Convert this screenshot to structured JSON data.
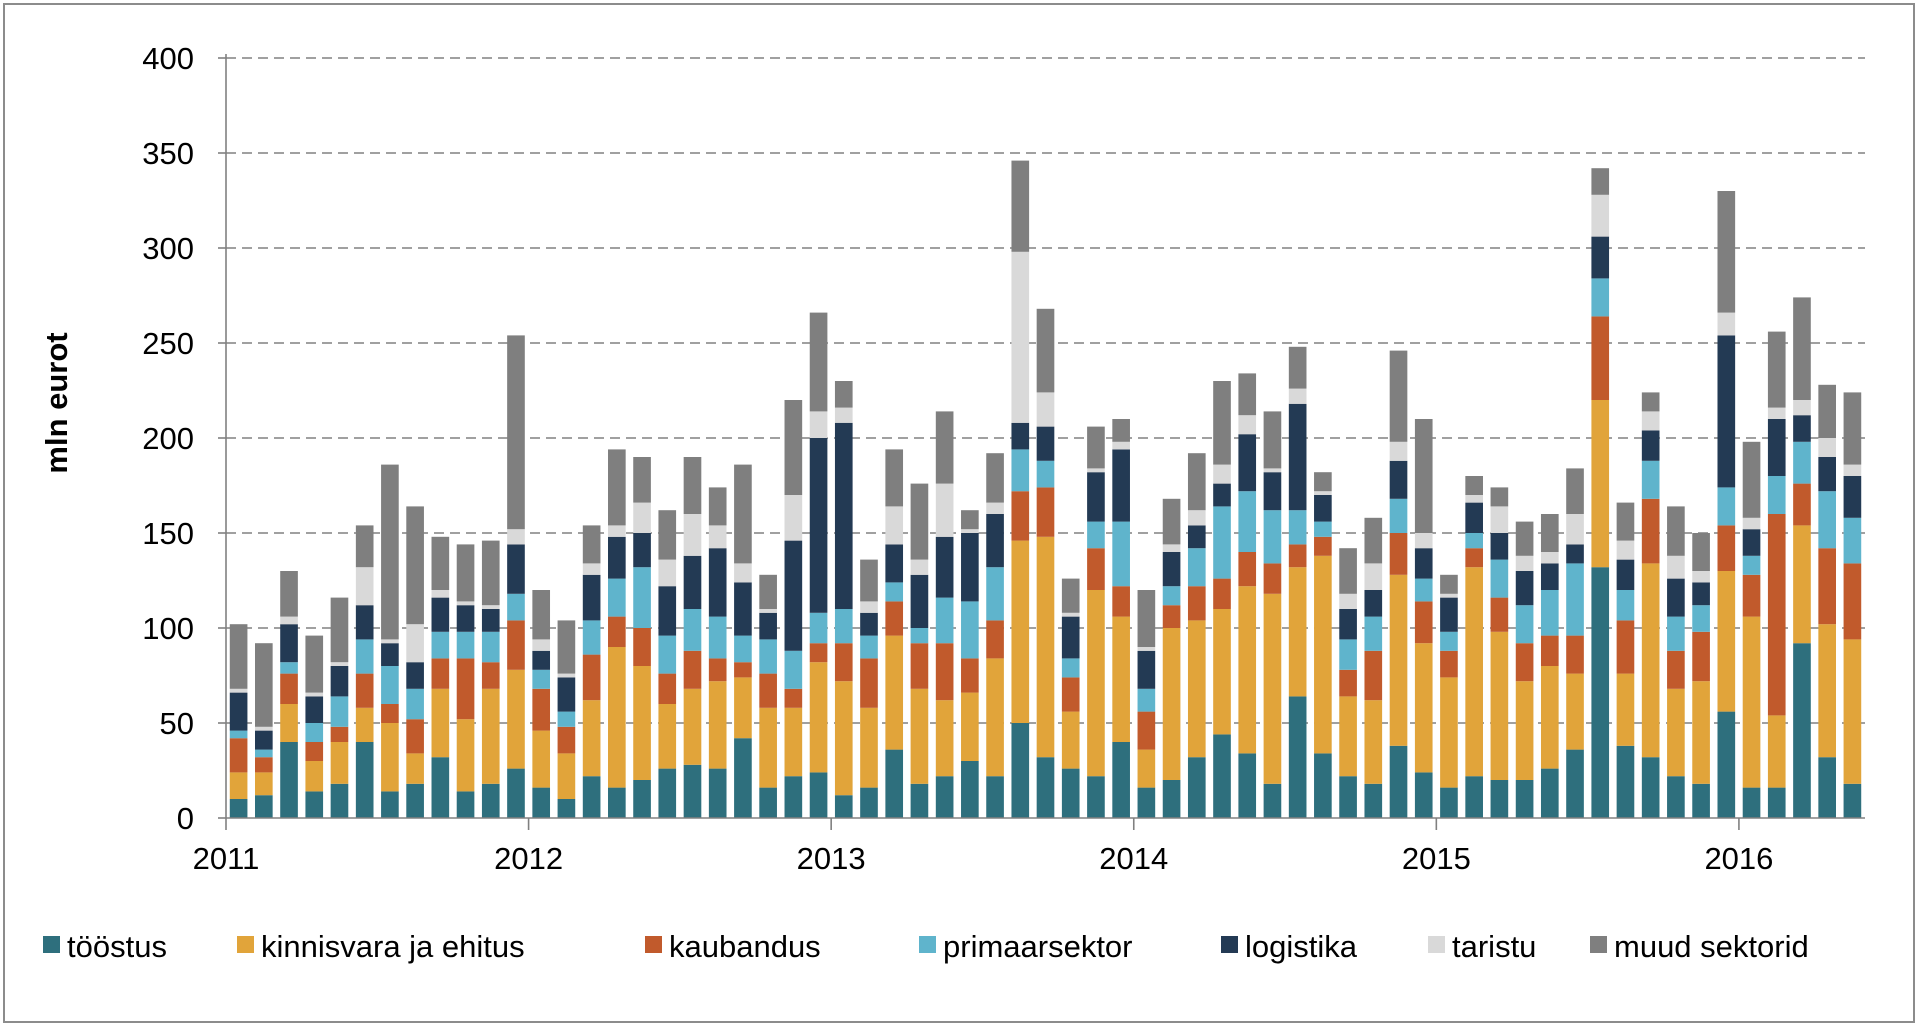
{
  "chart_data": {
    "type": "bar",
    "stacked": true,
    "title": "",
    "xlabel": "",
    "ylabel": "mln eurot",
    "ylim": [
      0,
      400
    ],
    "yticks": [
      0,
      50,
      100,
      150,
      200,
      250,
      300,
      350,
      400
    ],
    "grid": true,
    "legend_position": "bottom",
    "x_tick_labels": [
      "2011",
      "2012",
      "2013",
      "2014",
      "2015",
      "2016"
    ],
    "x_tick_months": [
      0,
      12,
      24,
      36,
      48,
      60
    ],
    "months_count": 65,
    "series": [
      {
        "name": "tööstus",
        "color": "#2e6f7d",
        "values": [
          10,
          12,
          40,
          14,
          18,
          40,
          14,
          18,
          32,
          14,
          18,
          26,
          16,
          10,
          22,
          16,
          20,
          26,
          28,
          26,
          42,
          16,
          22,
          24,
          12,
          16,
          36,
          18,
          22,
          30,
          22,
          50,
          32,
          26,
          22,
          40,
          16,
          20,
          32,
          44,
          34,
          18,
          64,
          34,
          22,
          18,
          38,
          24,
          16,
          22,
          20,
          20,
          26,
          36,
          132,
          38,
          32,
          22,
          18,
          56,
          16,
          16,
          92,
          32,
          18
        ]
      },
      {
        "name": "kinnisvara ja ehitus",
        "color": "#e1a43a",
        "values": [
          14,
          12,
          20,
          16,
          22,
          18,
          36,
          16,
          36,
          38,
          50,
          52,
          30,
          24,
          40,
          74,
          60,
          34,
          40,
          46,
          32,
          42,
          36,
          58,
          60,
          42,
          60,
          50,
          40,
          36,
          62,
          96,
          116,
          30,
          98,
          66,
          20,
          80,
          72,
          66,
          88,
          100,
          68,
          104,
          42,
          44,
          90,
          68,
          58,
          110,
          78,
          52,
          54,
          40,
          88,
          38,
          102,
          46,
          54,
          74,
          90,
          38,
          62,
          70,
          76
        ]
      },
      {
        "name": "kaubandus",
        "color": "#c15a2c",
        "values": [
          18,
          8,
          16,
          10,
          8,
          18,
          10,
          18,
          16,
          32,
          14,
          26,
          22,
          14,
          24,
          16,
          20,
          16,
          20,
          12,
          8,
          18,
          10,
          10,
          20,
          26,
          18,
          24,
          30,
          18,
          20,
          26,
          26,
          18,
          22,
          16,
          20,
          12,
          18,
          16,
          18,
          16,
          12,
          10,
          14,
          26,
          22,
          22,
          14,
          10,
          18,
          20,
          16,
          20,
          44,
          28,
          34,
          20,
          26,
          24,
          22,
          106,
          22,
          40,
          40
        ]
      },
      {
        "name": "primaarsektor",
        "color": "#5fb4cc",
        "values": [
          4,
          4,
          6,
          10,
          16,
          18,
          20,
          16,
          14,
          14,
          16,
          14,
          10,
          8,
          18,
          20,
          32,
          20,
          22,
          22,
          14,
          18,
          20,
          16,
          18,
          12,
          10,
          8,
          24,
          30,
          28,
          22,
          14,
          10,
          14,
          34,
          12,
          10,
          20,
          38,
          32,
          28,
          18,
          8,
          16,
          18,
          18,
          12,
          10,
          8,
          20,
          20,
          24,
          38,
          20,
          16,
          20,
          18,
          14,
          20,
          10,
          20,
          22,
          30,
          24
        ]
      },
      {
        "name": "logistika",
        "color": "#233a54",
        "values": [
          20,
          10,
          20,
          14,
          16,
          18,
          12,
          14,
          18,
          14,
          12,
          26,
          10,
          18,
          24,
          22,
          18,
          26,
          28,
          36,
          28,
          14,
          58,
          92,
          98,
          12,
          20,
          28,
          32,
          36,
          28,
          14,
          18,
          22,
          26,
          38,
          20,
          18,
          12,
          12,
          30,
          20,
          56,
          14,
          16,
          14,
          20,
          16,
          18,
          16,
          14,
          18,
          14,
          10,
          22,
          16,
          16,
          20,
          12,
          80,
          14,
          30,
          14,
          18,
          22
        ]
      },
      {
        "name": "taristu",
        "color": "#d9d9d9",
        "values": [
          2,
          2,
          4,
          2,
          2,
          20,
          2,
          20,
          4,
          2,
          2,
          8,
          6,
          2,
          6,
          6,
          16,
          14,
          22,
          12,
          10,
          2,
          24,
          14,
          8,
          6,
          20,
          8,
          28,
          2,
          6,
          90,
          18,
          2,
          2,
          4,
          2,
          4,
          8,
          10,
          10,
          2,
          8,
          2,
          8,
          14,
          10,
          8,
          2,
          4,
          14,
          8,
          6,
          16,
          22,
          10,
          10,
          12,
          6,
          12,
          6,
          6,
          8,
          10,
          6
        ]
      },
      {
        "name": "muud sektorid",
        "color": "#7f7f7f",
        "values": [
          34,
          44,
          24,
          30,
          34,
          22,
          92,
          62,
          28,
          30,
          34,
          102,
          26,
          28,
          20,
          40,
          24,
          26,
          30,
          20,
          52,
          18,
          50,
          52,
          14,
          22,
          30,
          40,
          38,
          10,
          26,
          48,
          44,
          18,
          22,
          12,
          30,
          24,
          30,
          44,
          22,
          30,
          22,
          10,
          24,
          24,
          48,
          60,
          10,
          10,
          10,
          18,
          20,
          24,
          14,
          20,
          10,
          26,
          20,
          64,
          40,
          40,
          54,
          28,
          38
        ]
      }
    ],
    "legend_entries": [
      "tööstus",
      "kinnisvara ja ehitus",
      "kaubandus",
      "primaarsektor",
      "logistika",
      "taristu",
      "muud sektorid"
    ]
  }
}
